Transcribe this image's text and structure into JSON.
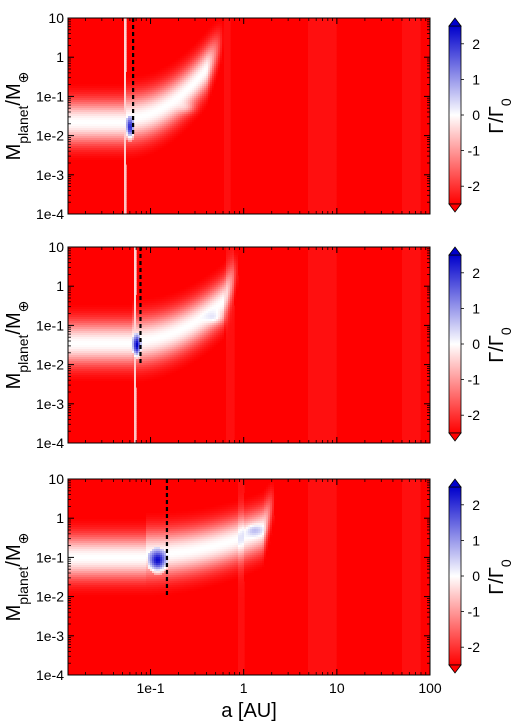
{
  "chart_data": [
    {
      "type": "heatmap",
      "panel": "top",
      "xlabel": "",
      "ylabel": "M_planet/M_⊕",
      "xscale": "log",
      "yscale": "log",
      "xlim": [
        0.013,
        100
      ],
      "ylim": [
        0.0001,
        10
      ],
      "x_ticks": [],
      "y_ticks": [
        "1e-4",
        "1e-3",
        "1e-2",
        "1e-1",
        "1",
        "10"
      ],
      "y_tick_values": [
        0.0001,
        0.001,
        0.01,
        0.1,
        1,
        10
      ],
      "colorbar": {
        "label": "Γ/Γ_0",
        "range": [
          -2.5,
          2.5
        ],
        "ticks": [
          "2",
          "1",
          "0",
          "-1",
          "-2"
        ],
        "tick_values": [
          2,
          1,
          0,
          -1,
          -2
        ]
      },
      "band": {
        "x_start": 0.055,
        "x_peak": 0.4,
        "x_end": 0.62,
        "y_center": [
          0.022,
          0.028,
          0.5,
          3.5
        ],
        "y_width": [
          0.55,
          0.6,
          0.55,
          0.45
        ]
      },
      "blue_region": {
        "x_min": 0.055,
        "x_max": 0.066,
        "y_center": 0.015,
        "strength": 2.6
      },
      "light_blue_region": {
        "x_center": 0.25,
        "y_center": 0.05,
        "strength": 0.6
      },
      "dashed_line": {
        "x": 0.065,
        "y_from": 0.01,
        "y_to": 10
      },
      "vertical_features": {
        "white_line_x": 0.053,
        "light_stripes": [
          [
            0.6,
            0.72
          ],
          [
            5,
            10
          ],
          [
            50,
            80
          ]
        ]
      }
    },
    {
      "type": "heatmap",
      "panel": "middle",
      "xlabel": "",
      "ylabel": "M_planet/M_⊕",
      "xscale": "log",
      "yscale": "log",
      "xlim": [
        0.013,
        100
      ],
      "ylim": [
        0.0001,
        10
      ],
      "x_ticks": [],
      "y_ticks": [
        "1e-4",
        "1e-3",
        "1e-2",
        "1e-1",
        "1",
        "10"
      ],
      "y_tick_values": [
        0.0001,
        0.001,
        0.01,
        0.1,
        1,
        10
      ],
      "colorbar": {
        "label": "Γ/Γ_0",
        "range": [
          -2.5,
          2.5
        ],
        "ticks": [
          "2",
          "1",
          "0",
          "-1",
          "-2"
        ],
        "tick_values": [
          2,
          1,
          0,
          -1,
          -2
        ]
      },
      "band": {
        "x_start": 0.063,
        "x_peak": 0.6,
        "x_end": 0.9,
        "y_center": [
          0.035,
          0.04,
          0.4,
          3.5
        ],
        "y_width": [
          0.55,
          0.6,
          0.55,
          0.45
        ]
      },
      "blue_region": {
        "x_min": 0.065,
        "x_max": 0.078,
        "y_center": 0.03,
        "strength": 2.6
      },
      "light_blue_region": {
        "x_center": 0.5,
        "y_center": 0.15,
        "strength": 0.6
      },
      "dashed_line": {
        "x": 0.078,
        "y_from": 0.01,
        "y_to": 10
      },
      "vertical_features": {
        "white_line_x": 0.068,
        "light_stripes": [
          [
            0.65,
            0.8
          ],
          [
            5,
            10
          ],
          [
            50,
            80
          ]
        ]
      }
    },
    {
      "type": "heatmap",
      "panel": "bottom",
      "xlabel": "a [AU]",
      "ylabel": "M_planet/M_⊕",
      "xscale": "log",
      "yscale": "log",
      "xlim": [
        0.013,
        100
      ],
      "ylim": [
        0.0001,
        10
      ],
      "x_ticks": [
        "1e-1",
        "1",
        "10",
        "100"
      ],
      "x_tick_values": [
        0.1,
        1,
        10,
        100
      ],
      "y_ticks": [
        "1e-4",
        "1e-3",
        "1e-2",
        "1e-1",
        "1",
        "10"
      ],
      "y_tick_values": [
        0.0001,
        0.001,
        0.01,
        0.1,
        1,
        10
      ],
      "colorbar": {
        "label": "Γ/Γ_0",
        "range": [
          -2.5,
          2.5
        ],
        "ticks": [
          "2",
          "1",
          "0",
          "-1",
          "-2"
        ],
        "tick_values": [
          2,
          1,
          0,
          -1,
          -2
        ]
      },
      "band": {
        "x_start": 0.09,
        "x_peak": 1.6,
        "x_end": 2.2,
        "y_center": [
          0.1,
          0.12,
          0.5,
          3.5
        ],
        "y_width": [
          0.55,
          0.6,
          0.55,
          0.45
        ]
      },
      "blue_region": {
        "x_min": 0.095,
        "x_max": 0.15,
        "y_center": 0.08,
        "strength": 2.6
      },
      "light_blue_region": {
        "x_center": 1.3,
        "y_center": 0.5,
        "strength": 0.7
      },
      "dashed_line": {
        "x": 0.15,
        "y_from": 0.01,
        "y_to": 10
      },
      "vertical_features": {
        "white_line_x": 0.12,
        "light_stripes": [
          [
            0.85,
            1.0
          ],
          [
            5,
            10
          ],
          [
            50,
            80
          ]
        ]
      }
    }
  ]
}
